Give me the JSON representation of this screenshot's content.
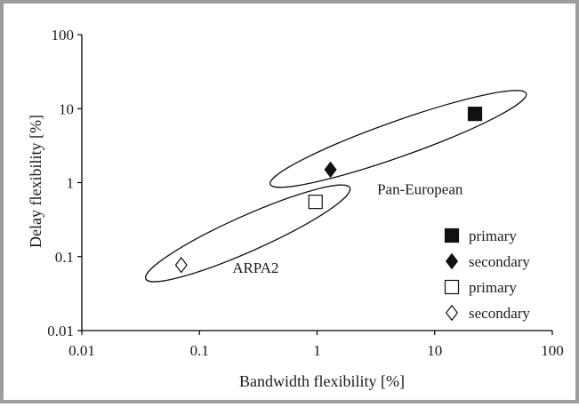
{
  "chart_data": {
    "type": "scatter",
    "xscale": "log",
    "yscale": "log",
    "xlim": [
      0.01,
      100
    ],
    "ylim": [
      0.01,
      100
    ],
    "xlabel": "Bandwidth flexibility [%]",
    "ylabel": "Delay flexibility [%]",
    "x_ticks": [
      "0.01",
      "0.1",
      "1",
      "10",
      "100"
    ],
    "y_ticks": [
      "0.01",
      "0.1",
      "1",
      "10",
      "100"
    ],
    "grid": false,
    "legend_position": "bottom-right",
    "series": [
      {
        "name": "primary",
        "marker": "square",
        "fill": "#111111",
        "points": [
          {
            "x": 22,
            "y": 8.5
          }
        ]
      },
      {
        "name": "secondary",
        "marker": "diamond",
        "fill": "#111111",
        "points": [
          {
            "x": 1.3,
            "y": 1.5
          }
        ]
      },
      {
        "name": "primary",
        "marker": "square",
        "fill": "#ffffff",
        "points": [
          {
            "x": 0.97,
            "y": 0.55
          }
        ]
      },
      {
        "name": "secondary",
        "marker": "diamond",
        "fill": "#ffffff",
        "points": [
          {
            "x": 0.07,
            "y": 0.077
          }
        ]
      }
    ],
    "annotations": [
      {
        "text": "Pan-European",
        "x": 7.5,
        "y": 0.7
      },
      {
        "text": "ARPA2",
        "x": 0.3,
        "y": 0.06
      }
    ],
    "groups": [
      {
        "label": "Pan-European",
        "from": {
          "x": 0.4,
          "y": 0.95
        },
        "to": {
          "x": 60,
          "y": 16
        }
      },
      {
        "label": "ARPA2",
        "from": {
          "x": 0.035,
          "y": 0.05
        },
        "to": {
          "x": 1.9,
          "y": 0.85
        }
      }
    ]
  }
}
